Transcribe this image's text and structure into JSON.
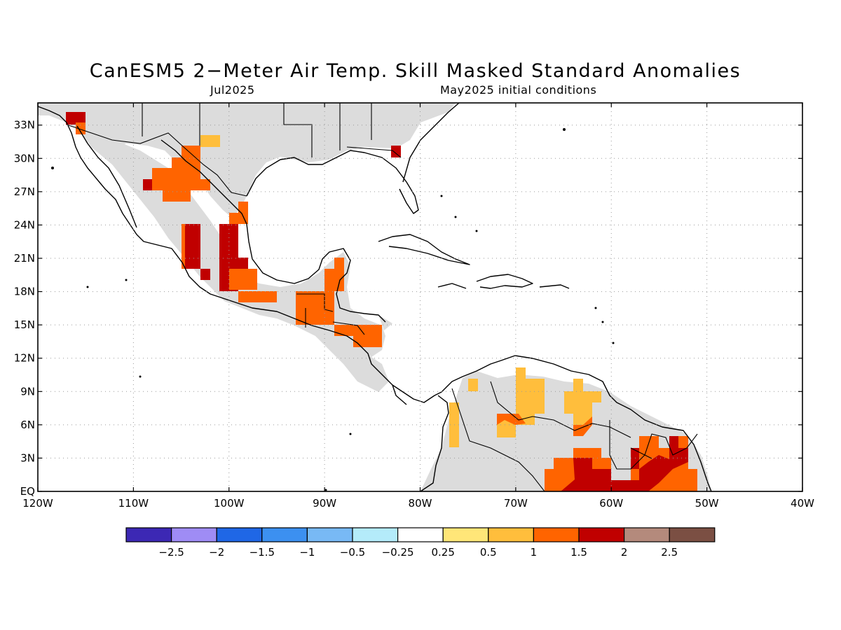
{
  "title": "CanESM5 2−Meter Air Temp. Skill Masked Standard Anomalies",
  "subtitle_left": "Jul2025",
  "subtitle_right": "May2025 initial conditions",
  "map": {
    "lon_range": [
      -120,
      -40
    ],
    "lat_range": [
      0,
      35
    ],
    "y_ticks": [
      {
        "lat": 33,
        "label": "33N"
      },
      {
        "lat": 30,
        "label": "30N"
      },
      {
        "lat": 27,
        "label": "27N"
      },
      {
        "lat": 24,
        "label": "24N"
      },
      {
        "lat": 21,
        "label": "21N"
      },
      {
        "lat": 18,
        "label": "18N"
      },
      {
        "lat": 15,
        "label": "15N"
      },
      {
        "lat": 12,
        "label": "12N"
      },
      {
        "lat": 9,
        "label": "9N"
      },
      {
        "lat": 6,
        "label": "6N"
      },
      {
        "lat": 3,
        "label": "3N"
      },
      {
        "lat": 0,
        "label": "EQ"
      }
    ],
    "x_ticks": [
      {
        "lon": -120,
        "label": "120W"
      },
      {
        "lon": -110,
        "label": "110W"
      },
      {
        "lon": -100,
        "label": "100W"
      },
      {
        "lon": -90,
        "label": "90W"
      },
      {
        "lon": -80,
        "label": "80W"
      },
      {
        "lon": -70,
        "label": "70W"
      },
      {
        "lon": -60,
        "label": "60W"
      },
      {
        "lon": -50,
        "label": "50W"
      },
      {
        "lon": -40,
        "label": "40W"
      }
    ]
  },
  "colorbar": {
    "colors": [
      "#3c28b4",
      "#9f8cf5",
      "#1f67e6",
      "#3c90f0",
      "#78b9f5",
      "#b4ebfa",
      "#ffffff",
      "#ffe678",
      "#ffbe3c",
      "#ff6400",
      "#c00000",
      "#b48a7c",
      "#7b4f43"
    ],
    "labels": [
      "−2.5",
      "−2",
      "−1.5",
      "−1",
      "−0.5",
      "−0.25",
      "0.25",
      "0.5",
      "1",
      "1.5",
      "2",
      "2.5"
    ]
  }
}
